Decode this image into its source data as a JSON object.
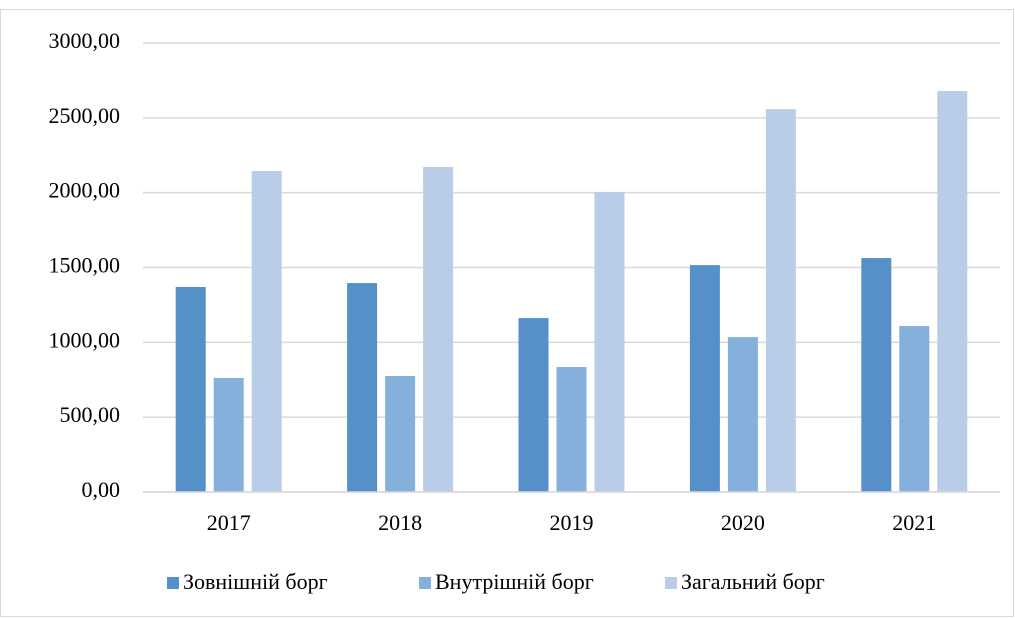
{
  "chart_data": {
    "type": "bar",
    "categories": [
      "2017",
      "2018",
      "2019",
      "2020",
      "2021"
    ],
    "series": [
      {
        "name": "Зовнішній борг",
        "color": "#5591c8",
        "values": [
          1370,
          1396,
          1162,
          1516,
          1563
        ]
      },
      {
        "name": "Внутрішній борг",
        "color": "#86b0dc",
        "values": [
          762,
          775,
          835,
          1035,
          1109
        ]
      },
      {
        "name": "Загальний борг",
        "color": "#b9cde9",
        "values": [
          2145,
          2171,
          2004,
          2558,
          2679
        ]
      }
    ],
    "ylim": [
      0,
      3000
    ],
    "yticks": [
      {
        "value": 0,
        "label": "0,00"
      },
      {
        "value": 500,
        "label": "500,00"
      },
      {
        "value": 1000,
        "label": "1000,00"
      },
      {
        "value": 1500,
        "label": "1500,00"
      },
      {
        "value": 2000,
        "label": "2000,00"
      },
      {
        "value": 2500,
        "label": "2500,00"
      },
      {
        "value": 3000,
        "label": "3000,00"
      }
    ],
    "grid": true,
    "legend": "bottom"
  }
}
